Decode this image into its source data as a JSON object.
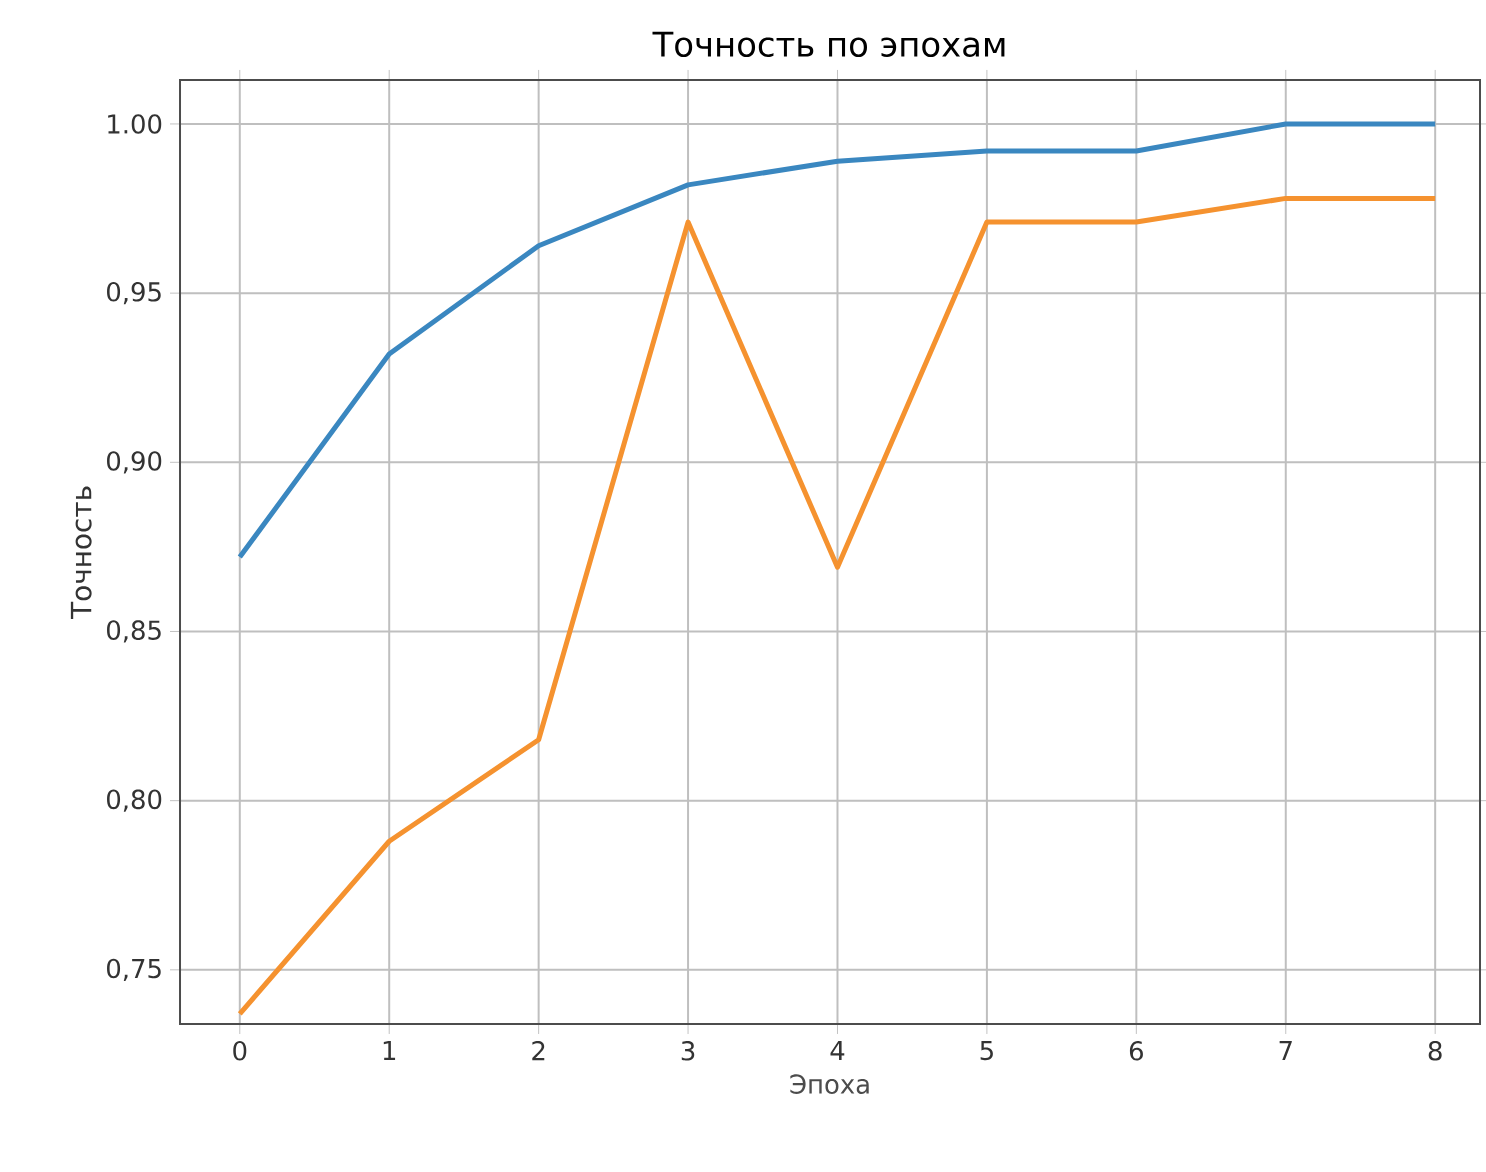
{
  "chart_data": {
    "type": "line",
    "title": "Точность по эпохам",
    "xlabel": "Эпоха",
    "ylabel": "Точность",
    "x": [
      0,
      1,
      2,
      3,
      4,
      5,
      6,
      7,
      8
    ],
    "series": [
      {
        "color": "#3a87c0",
        "values": [
          0.872,
          0.932,
          0.964,
          0.982,
          0.989,
          0.992,
          0.992,
          1.0,
          1.0
        ]
      },
      {
        "color": "#f5922f",
        "values": [
          0.737,
          0.788,
          0.818,
          0.971,
          0.869,
          0.971,
          0.971,
          0.978,
          0.978
        ]
      }
    ],
    "xlim": [
      -0.4,
      8.3
    ],
    "ylim": [
      0.734,
      1.013
    ],
    "xticks": [
      0,
      1,
      2,
      3,
      4,
      5,
      6,
      7,
      8
    ],
    "yticks": [
      {
        "value": 0.75,
        "label": "0,75"
      },
      {
        "value": 0.8,
        "label": "0,80"
      },
      {
        "value": 0.85,
        "label": "0,85"
      },
      {
        "value": 0.9,
        "label": "0,90"
      },
      {
        "value": 0.95,
        "label": "0,95"
      },
      {
        "value": 1.0,
        "label": "1.00"
      }
    ],
    "grid": true,
    "marker": "none",
    "line_style": "solid"
  }
}
